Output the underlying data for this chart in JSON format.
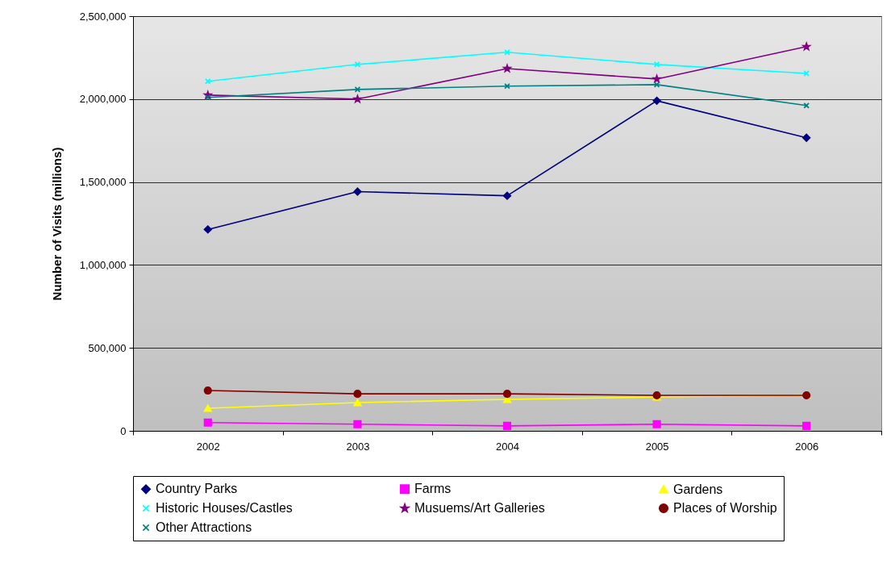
{
  "chart_data": {
    "type": "line",
    "ylabel": "Number of Visits (millions)",
    "categories": [
      "2002",
      "2003",
      "2004",
      "2005",
      "2006"
    ],
    "ylim": [
      0,
      2500000
    ],
    "yticks": [
      {
        "value": 0,
        "label": "0"
      },
      {
        "value": 500000,
        "label": "500,000"
      },
      {
        "value": 1000000,
        "label": "1,000,000"
      },
      {
        "value": 1500000,
        "label": "1,500,000"
      },
      {
        "value": 2000000,
        "label": "2,000,000"
      },
      {
        "value": 2500000,
        "label": "2,500,000"
      }
    ],
    "grid": "y",
    "legend": "bottom",
    "series": [
      {
        "name": "Country Parks",
        "color": "#000080",
        "marker": "diamond",
        "values": [
          1214000,
          1442000,
          1417000,
          1990000,
          1767000
        ]
      },
      {
        "name": "Farms",
        "color": "#ff00ff",
        "marker": "square",
        "values": [
          50000,
          40000,
          30000,
          40000,
          30000
        ]
      },
      {
        "name": "Gardens",
        "color": "#ffff00",
        "marker": "triangle",
        "values": [
          136000,
          170000,
          190000,
          204000,
          216000
        ]
      },
      {
        "name": "Historic Houses/Castles",
        "color": "#00ffff",
        "marker": "cross",
        "values": [
          2107000,
          2209000,
          2282000,
          2209000,
          2155000
        ]
      },
      {
        "name": "Musuems/Art Galleries",
        "color": "#800080",
        "marker": "star",
        "values": [
          2024000,
          2000000,
          2184000,
          2121000,
          2316000
        ]
      },
      {
        "name": "Places of Worship",
        "color": "#800000",
        "marker": "circle",
        "values": [
          243000,
          223000,
          223000,
          214000,
          214000
        ]
      },
      {
        "name": "Other Attractions",
        "color": "#008080",
        "marker": "cross",
        "values": [
          2010000,
          2058000,
          2078000,
          2087000,
          1961000
        ]
      }
    ]
  }
}
